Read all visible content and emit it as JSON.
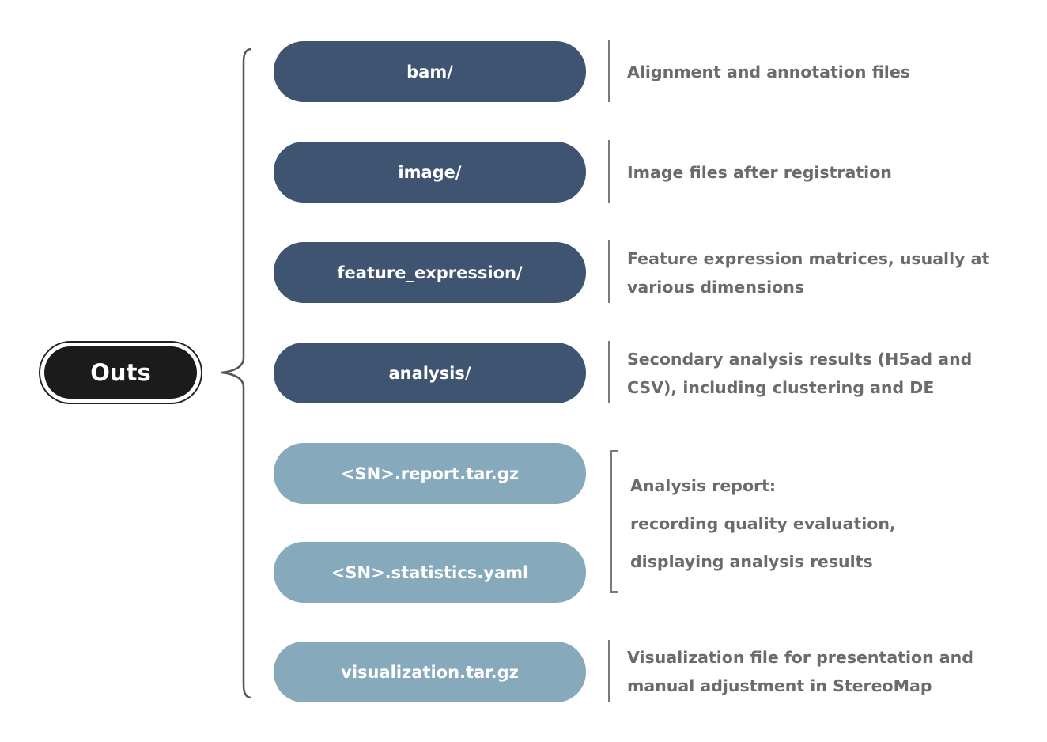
{
  "root": {
    "label": "Outs"
  },
  "nodes": [
    {
      "label": "bam/",
      "style": "dark"
    },
    {
      "label": "image/",
      "style": "dark"
    },
    {
      "label": "feature_expression/",
      "style": "dark"
    },
    {
      "label": "analysis/",
      "style": "dark"
    },
    {
      "label": "<SN>.report.tar.gz",
      "style": "light"
    },
    {
      "label": "<SN>.statistics.yaml",
      "style": "light"
    },
    {
      "label": "visualization.tar.gz",
      "style": "light"
    }
  ],
  "descriptions": {
    "bam": [
      "Alignment and annotation files"
    ],
    "image": [
      "Image files after registration"
    ],
    "feature_expression": [
      "Feature expression matrices, usually at",
      "various dimensions"
    ],
    "analysis": [
      "Secondary analysis results (H5ad and",
      "CSV), including clustering and DE"
    ],
    "report": [
      "Analysis report:",
      "recording quality evaluation,",
      "displaying analysis results"
    ],
    "visualization": [
      "Visualization file for presentation and",
      "manual adjustment in StereoMap"
    ]
  },
  "colors": {
    "root_fill": "#1b1b1b",
    "dark_node": "#3f5470",
    "light_node": "#86aabb",
    "description_text": "#6b6b6b",
    "divider": "#7a7a7a"
  }
}
